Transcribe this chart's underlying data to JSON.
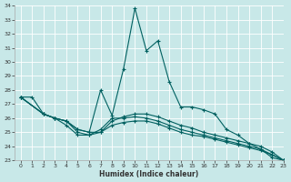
{
  "xlabel": "Humidex (Indice chaleur)",
  "background_color": "#c8e8e8",
  "grid_color": "#ffffff",
  "line_color": "#006060",
  "xlim": [
    -0.5,
    23
  ],
  "ylim": [
    23,
    34
  ],
  "yticks": [
    23,
    24,
    25,
    26,
    27,
    28,
    29,
    30,
    31,
    32,
    33,
    34
  ],
  "xticks": [
    0,
    1,
    2,
    3,
    4,
    5,
    6,
    7,
    8,
    9,
    10,
    11,
    12,
    13,
    14,
    15,
    16,
    17,
    18,
    19,
    20,
    21,
    22,
    23
  ],
  "series": [
    [
      27.5,
      27.5,
      26.3,
      26.0,
      25.8,
      25.2,
      25.0,
      28.0,
      26.2,
      29.5,
      33.8,
      30.8,
      31.5,
      28.6,
      26.8,
      26.8,
      26.6,
      26.3,
      25.2,
      24.8,
      24.2,
      23.8,
      23.2,
      23.0
    ],
    [
      27.5,
      null,
      26.3,
      26.0,
      25.8,
      25.2,
      25.0,
      25.0,
      25.8,
      26.1,
      26.3,
      26.3,
      26.1,
      25.8,
      25.5,
      25.3,
      25.0,
      24.8,
      24.6,
      24.4,
      24.2,
      24.0,
      23.6,
      23.0
    ],
    [
      27.5,
      null,
      26.3,
      26.0,
      25.8,
      25.0,
      24.8,
      25.2,
      26.0,
      26.0,
      26.1,
      26.0,
      25.8,
      25.5,
      25.2,
      25.0,
      24.8,
      24.6,
      24.4,
      24.2,
      24.0,
      23.8,
      23.4,
      23.0
    ],
    [
      27.5,
      null,
      26.3,
      26.0,
      25.5,
      24.8,
      24.8,
      25.0,
      25.5,
      25.7,
      25.8,
      25.8,
      25.6,
      25.3,
      25.0,
      24.8,
      24.7,
      24.5,
      24.3,
      24.1,
      23.9,
      23.7,
      23.4,
      23.0
    ]
  ]
}
